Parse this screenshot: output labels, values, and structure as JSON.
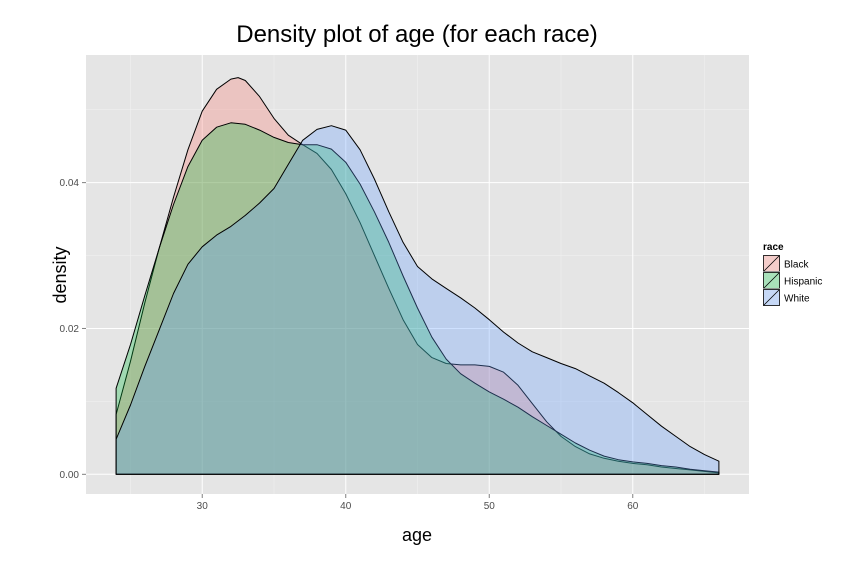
{
  "chart_data": {
    "type": "area",
    "title": "Density plot of age (for each race)",
    "xlabel": "age",
    "ylabel": "density",
    "xlim": [
      21.9,
      68.1
    ],
    "ylim": [
      -0.0027,
      0.0575
    ],
    "x_ticks": [
      30,
      40,
      50,
      60
    ],
    "x_tick_labels": [
      "30",
      "40",
      "50",
      "60"
    ],
    "y_ticks": [
      0,
      0.02,
      0.04
    ],
    "y_tick_labels": [
      "0.00",
      "0.02",
      "0.04"
    ],
    "grid": true,
    "background": "#e5e5e5",
    "legend": {
      "title": "race",
      "position": "right"
    },
    "series": [
      {
        "name": "Black",
        "color": "#F8766D",
        "x": [
          24,
          25,
          26,
          27,
          28,
          29,
          30,
          31,
          32,
          32.5,
          33,
          34,
          35,
          36,
          37,
          38,
          39,
          40,
          41,
          42,
          43,
          44,
          45,
          46,
          47,
          48,
          49,
          50,
          51,
          52,
          53,
          54,
          55,
          56,
          57,
          58,
          59,
          60,
          61,
          62,
          63,
          64,
          65,
          66
        ],
        "y": [
          0.0082,
          0.0155,
          0.0235,
          0.031,
          0.038,
          0.0445,
          0.0498,
          0.0528,
          0.0542,
          0.0544,
          0.054,
          0.0518,
          0.0488,
          0.0465,
          0.0452,
          0.044,
          0.0418,
          0.0385,
          0.0345,
          0.03,
          0.0255,
          0.0212,
          0.0178,
          0.016,
          0.0152,
          0.015,
          0.015,
          0.0148,
          0.014,
          0.0122,
          0.0097,
          0.0072,
          0.0052,
          0.0038,
          0.0028,
          0.0022,
          0.0018,
          0.0015,
          0.0013,
          0.001,
          0.0008,
          0.0006,
          0.0004,
          0.0002
        ]
      },
      {
        "name": "Hispanic",
        "color": "#00BA38",
        "x": [
          24,
          25,
          26,
          27,
          28,
          29,
          30,
          31,
          32,
          33,
          34,
          35,
          36,
          37,
          38,
          39,
          40,
          41,
          42,
          43,
          44,
          45,
          46,
          47,
          48,
          49,
          50,
          51,
          52,
          53,
          54,
          55,
          56,
          57,
          58,
          59,
          60,
          61,
          62,
          63,
          64,
          65,
          66
        ],
        "y": [
          0.0118,
          0.0178,
          0.0245,
          0.031,
          0.037,
          0.0422,
          0.0458,
          0.0476,
          0.0482,
          0.048,
          0.0472,
          0.0462,
          0.0455,
          0.0452,
          0.0452,
          0.0446,
          0.0428,
          0.0398,
          0.036,
          0.0318,
          0.0272,
          0.0228,
          0.0188,
          0.0158,
          0.0138,
          0.0125,
          0.0113,
          0.0103,
          0.0092,
          0.0079,
          0.0067,
          0.0055,
          0.0043,
          0.0033,
          0.0025,
          0.002,
          0.0017,
          0.0015,
          0.0012,
          0.001,
          0.0007,
          0.0005,
          0.0003
        ]
      },
      {
        "name": "White",
        "color": "#619CFF",
        "x": [
          24,
          25,
          26,
          27,
          28,
          29,
          30,
          31,
          32,
          33,
          34,
          35,
          36,
          37,
          38,
          39,
          40,
          41,
          42,
          43,
          44,
          45,
          46,
          47,
          48,
          49,
          50,
          51,
          52,
          53,
          54,
          55,
          56,
          57,
          58,
          59,
          60,
          61,
          62,
          63,
          64,
          65,
          66
        ],
        "y": [
          0.0048,
          0.0095,
          0.0148,
          0.0198,
          0.0248,
          0.0288,
          0.0312,
          0.0328,
          0.034,
          0.0355,
          0.0372,
          0.0392,
          0.0425,
          0.0458,
          0.0473,
          0.0478,
          0.0472,
          0.0445,
          0.0405,
          0.036,
          0.0318,
          0.0285,
          0.0268,
          0.0255,
          0.0242,
          0.0228,
          0.0212,
          0.0195,
          0.018,
          0.0168,
          0.016,
          0.0152,
          0.0145,
          0.0135,
          0.0125,
          0.0112,
          0.0098,
          0.0082,
          0.0066,
          0.0052,
          0.0038,
          0.0027,
          0.0018
        ]
      }
    ]
  }
}
